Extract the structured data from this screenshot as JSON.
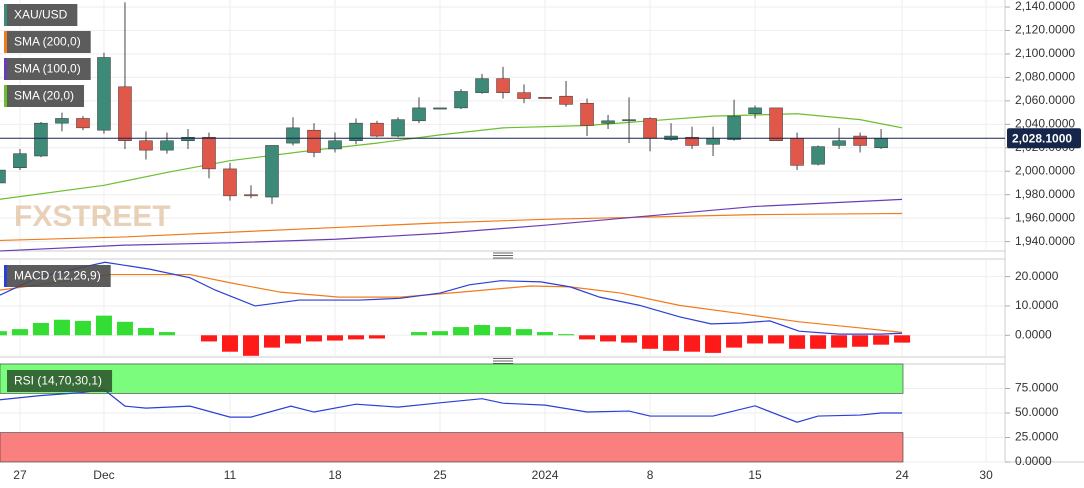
{
  "chart_data": [
    {
      "type": "candlestick",
      "title": "XAU/USD",
      "watermark": "FXSTREET",
      "x": [
        -1,
        0,
        1,
        2,
        3,
        4,
        5,
        6,
        7,
        8,
        9,
        10,
        11,
        12,
        13,
        14,
        15,
        16,
        17,
        18,
        19,
        20,
        21,
        22,
        23,
        24,
        25,
        26,
        27,
        28,
        29,
        30,
        31,
        32,
        33,
        34,
        35,
        36,
        37,
        38,
        39,
        40,
        41
      ],
      "open": [
        1990,
        2003,
        2013,
        2041,
        2045,
        2035,
        2072,
        2026,
        2018,
        2026,
        2029,
        2002,
        1980,
        1978,
        2024,
        2035,
        2019,
        2026,
        2041,
        2030,
        2043,
        2053,
        2054,
        2067,
        2079,
        2067,
        2063,
        2064,
        2058,
        2041,
        2043,
        2045,
        2027,
        2029,
        2023,
        2027,
        2049,
        2054,
        2028,
        2006,
        2022,
        2030,
        2020
      ],
      "high": [
        2001,
        2019,
        2042,
        2050,
        2047,
        2101,
        2144,
        2034,
        2033,
        2036,
        2033,
        2007,
        1988,
        2022,
        2046,
        2041,
        2033,
        2045,
        2043,
        2046,
        2063,
        2054,
        2070,
        2083,
        2089,
        2074,
        2063,
        2077,
        2062,
        2048,
        2063,
        2046,
        2041,
        2038,
        2038,
        2061,
        2056,
        2054,
        2033,
        2022,
        2037,
        2033,
        2036
      ],
      "low": [
        1990,
        2001,
        2012,
        2034,
        2035,
        2032,
        2019,
        2010,
        2015,
        2019,
        1994,
        1975,
        1977,
        1972,
        2022,
        2012,
        2016,
        2023,
        2029,
        2029,
        2041,
        2053,
        2053,
        2066,
        2062,
        2058,
        2062,
        2055,
        2030,
        2036,
        2024,
        2017,
        2026,
        2019,
        2013,
        2026,
        2045,
        2026,
        2001,
        2005,
        2019,
        2016,
        2019
      ],
      "close": [
        2001,
        2015,
        2041,
        2045,
        2037,
        2097,
        2026,
        2018,
        2026,
        2029,
        2002,
        1979,
        1979,
        2022,
        2037,
        2016,
        2026,
        2041,
        2030,
        2044,
        2054,
        2054,
        2068,
        2079,
        2067,
        2062,
        2062,
        2057,
        2039,
        2043,
        2044,
        2028,
        2030,
        2022,
        2028,
        2047,
        2054,
        2026,
        2005,
        2021,
        2026,
        2022,
        2028
      ],
      "up_color": "#3d8a78",
      "down_color": "#e0584a",
      "series": [
        {
          "name": "SMA (200,0)",
          "color": "#f07b1a",
          "x": [
            -1,
            5,
            10,
            15,
            20,
            25,
            30,
            35,
            42
          ],
          "values": [
            1941,
            1944,
            1948,
            1952,
            1956,
            1959,
            1961,
            1963,
            1964
          ]
        },
        {
          "name": "SMA (100,0)",
          "color": "#6a3db8",
          "x": [
            -1,
            5,
            10,
            15,
            20,
            25,
            30,
            35,
            42
          ],
          "values": [
            1932,
            1937,
            1939,
            1942,
            1947,
            1954,
            1962,
            1970,
            1976
          ]
        },
        {
          "name": "SMA (20,0)",
          "color": "#6bbf2d",
          "x": [
            -1,
            4,
            7,
            10,
            14,
            17,
            20,
            23,
            27,
            30,
            33,
            37,
            40,
            42
          ],
          "values": [
            1976,
            1988,
            1999,
            2009,
            2018,
            2024,
            2031,
            2037,
            2039,
            2043,
            2047,
            2049,
            2044,
            2037
          ]
        }
      ],
      "last_price": {
        "value": 2028.1,
        "label": "2,028.1000",
        "color": "#16264a"
      },
      "xlim": [
        -0.95,
        46.9
      ],
      "ylim": [
        1932,
        2146
      ],
      "yticks": [
        {
          "value": 1940,
          "label": "1,940.0000"
        },
        {
          "value": 1960,
          "label": "1,960.0000"
        },
        {
          "value": 1980,
          "label": "1,980.0000"
        },
        {
          "value": 2000,
          "label": "2,000.0000"
        },
        {
          "value": 2020,
          "label": "2,020.0000"
        },
        {
          "value": 2040,
          "label": "2,040.0000"
        },
        {
          "value": 2060,
          "label": "2,060.0000"
        },
        {
          "value": 2080,
          "label": "2,080.0000"
        },
        {
          "value": 2100,
          "label": "2,100.0000"
        },
        {
          "value": 2120,
          "label": "2,120.0000"
        },
        {
          "value": 2140,
          "label": "2,140.0000"
        }
      ]
    },
    {
      "type": "macd",
      "title": "MACD (12,26,9)",
      "macd": {
        "color": "#2b3fd6",
        "x": [
          -0.95,
          0.95,
          4.05,
          6.2,
          8.1,
          9.3,
          11.2,
          13.3,
          16.2,
          18.1,
          20,
          21.4,
          22.9,
          24.8,
          26.2,
          27.6,
          29.5,
          31.4,
          32.9,
          34.3,
          35.7,
          37.1,
          39,
          41,
          42
        ],
        "values": [
          13.7,
          20,
          24.9,
          22.5,
          19.6,
          15.4,
          10,
          12,
          12,
          12.6,
          14.4,
          17.2,
          18.6,
          18.2,
          16.5,
          13,
          10.2,
          6.3,
          3.9,
          4.2,
          4.9,
          1.4,
          0.4,
          0.4,
          0.7
        ]
      },
      "signal": {
        "color": "#f07b1a",
        "x": [
          -0.95,
          1.9,
          4.3,
          8.1,
          10,
          12.4,
          15.2,
          18.1,
          21,
          24.3,
          26.2,
          28.6,
          31.4,
          34.3,
          37.1,
          40,
          42
        ],
        "values": [
          15.4,
          18.2,
          20.7,
          20.7,
          17.9,
          14.7,
          13,
          13,
          14.7,
          16.8,
          16.5,
          14.4,
          10.2,
          7.4,
          4.6,
          2.5,
          1
        ]
      },
      "histogram": {
        "up_color": "#33dd33",
        "down_color": "#ff1a1a",
        "x": [
          -1,
          0,
          1,
          2,
          3,
          4,
          5,
          6,
          7,
          8,
          9,
          10,
          11,
          12,
          13,
          14,
          15,
          16,
          17,
          18,
          19,
          20,
          21,
          22,
          23,
          24,
          25,
          26,
          27,
          28,
          29,
          30,
          31,
          32,
          33,
          34,
          35,
          36,
          37,
          38,
          39,
          40,
          41,
          42
        ],
        "values": [
          1.4,
          2.1,
          4.2,
          5.3,
          4.9,
          6.7,
          4.6,
          2.5,
          1.1,
          0,
          -2.1,
          -5.6,
          -7,
          -4.2,
          -2.8,
          -2.1,
          -1.8,
          -1.4,
          -1.1,
          0,
          1.1,
          1.4,
          2.8,
          3.5,
          2.8,
          2.1,
          1.1,
          0.4,
          -1.4,
          -2.1,
          -2.5,
          -4.6,
          -5.3,
          -5.6,
          -6,
          -4.2,
          -2.8,
          -2.8,
          -4.6,
          -4.6,
          -4.2,
          -3.9,
          -3.2,
          -2.5
        ]
      },
      "xlim": [
        -0.95,
        46.9
      ],
      "ylim": [
        -7.4,
        26
      ],
      "yticks": [
        {
          "value": 0,
          "label": "0.0000"
        },
        {
          "value": 10,
          "label": "10.0000"
        },
        {
          "value": 20,
          "label": "20.0000"
        }
      ]
    },
    {
      "type": "rsi",
      "title": "RSI (14,70,30,1)",
      "line": {
        "color": "#2b3fd6",
        "x": [
          -0.95,
          0.95,
          2.9,
          4,
          5,
          6,
          8.1,
          10,
          11,
          12.9,
          14,
          16,
          18,
          20,
          22,
          23,
          25,
          27,
          29,
          30,
          33,
          35,
          37,
          38,
          40,
          41,
          42
        ],
        "values": [
          63.5,
          67.7,
          70.8,
          74,
          57,
          55,
          57,
          45.8,
          45.8,
          57,
          51,
          59,
          56,
          60.4,
          64.6,
          60,
          58,
          51,
          52,
          46.9,
          46.9,
          57.3,
          40.6,
          46.9,
          47.9,
          50,
          50
        ]
      },
      "bands": [
        {
          "from": 70,
          "to": 100,
          "color": "#7cfc7c"
        },
        {
          "from": 0,
          "to": 30,
          "color": "#fa7f7f"
        }
      ],
      "xlim": [
        -0.95,
        46.9
      ],
      "ylim": [
        0,
        100
      ],
      "yticks": [
        {
          "value": 0,
          "label": "0.0000"
        },
        {
          "value": 25,
          "label": "25.0000"
        },
        {
          "value": 50,
          "label": "50.0000"
        },
        {
          "value": 75,
          "label": "75.0000"
        }
      ],
      "xticks": [
        {
          "value": 0,
          "label": "27"
        },
        {
          "value": 4,
          "label": "Dec"
        },
        {
          "value": 10,
          "label": "11"
        },
        {
          "value": 15,
          "label": "18"
        },
        {
          "value": 20,
          "label": "25"
        },
        {
          "value": 25,
          "label": "2024"
        },
        {
          "value": 30,
          "label": "8"
        },
        {
          "value": 35,
          "label": "15"
        },
        {
          "value": 42,
          "label": "24"
        },
        {
          "value": 46,
          "label": "30"
        }
      ]
    }
  ]
}
